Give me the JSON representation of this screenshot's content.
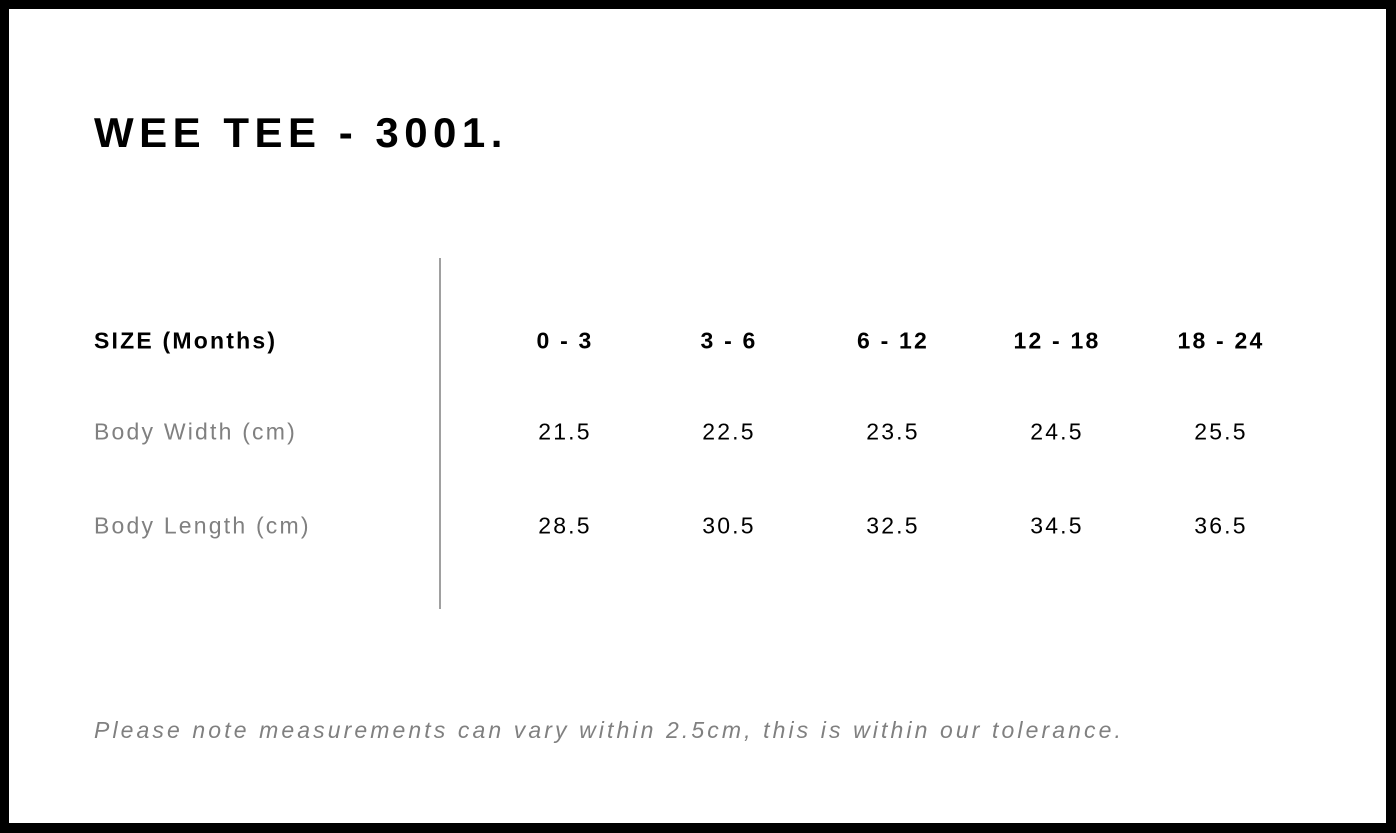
{
  "title": "WEE TEE - 3001.",
  "table": {
    "header_label": "SIZE (Months)",
    "sizes": [
      "0 - 3",
      "3 - 6",
      "6 - 12",
      "12 - 18",
      "18 - 24"
    ],
    "rows": [
      {
        "label": "Body Width (cm)",
        "values": [
          "21.5",
          "22.5",
          "23.5",
          "24.5",
          "25.5"
        ]
      },
      {
        "label": "Body Length (cm)",
        "values": [
          "28.5",
          "30.5",
          "32.5",
          "34.5",
          "36.5"
        ]
      }
    ]
  },
  "note": "Please note measurements can vary within 2.5cm, this is within our tolerance.",
  "colors": {
    "frame": "#000000",
    "label_grey": "#808080",
    "divider": "#a0a0a0"
  }
}
